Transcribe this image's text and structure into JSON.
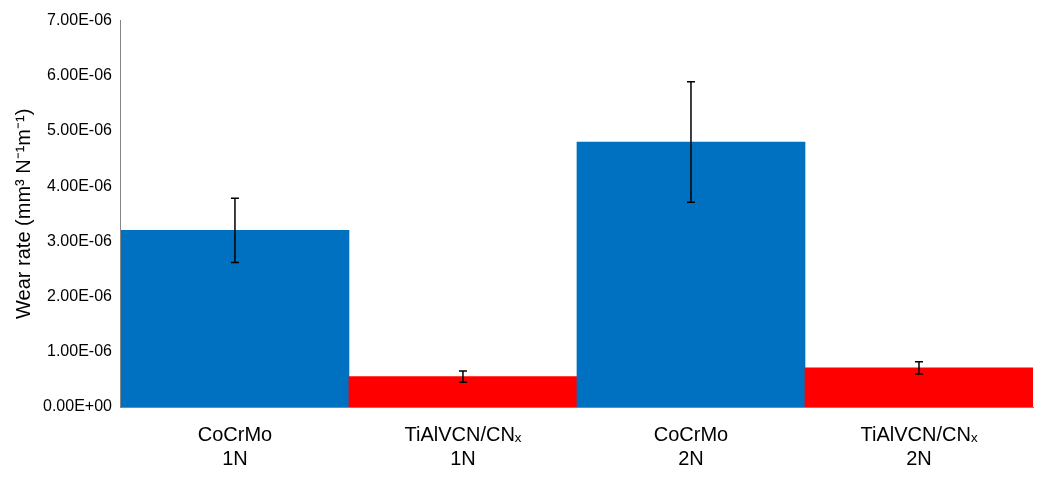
{
  "chart_data": {
    "type": "bar",
    "ylabel": "Wear rate (mm³ N⁻¹m⁻¹)",
    "categories": [
      "CoCrMo\n1N",
      "TiAlVCN/CNₓ\n1N",
      "CoCrMo\n2N",
      "TiAlVCN/CNₓ\n2N"
    ],
    "values": [
      3.2e-06,
      5.5e-07,
      4.8e-06,
      7.1e-07
    ],
    "colors": [
      "#0070c0",
      "#ff0000",
      "#0070c0",
      "#ff0000"
    ],
    "errors": [
      5.8e-07,
      1e-07,
      1.09e-06,
      1.1e-07
    ],
    "ylim": [
      0,
      7e-06
    ],
    "yticks": [
      {
        "value": 0,
        "label": "0.00E+00"
      },
      {
        "value": 1e-06,
        "label": "1.00E-06"
      },
      {
        "value": 2e-06,
        "label": "2.00E-06"
      },
      {
        "value": 3e-06,
        "label": "3.00E-06"
      },
      {
        "value": 4e-06,
        "label": "4.00E-06"
      },
      {
        "value": 5e-06,
        "label": "5.00E-06"
      },
      {
        "value": 6e-06,
        "label": "6.00E-06"
      },
      {
        "value": 7e-06,
        "label": "7.00E-06"
      }
    ],
    "grid": false,
    "legend": false
  }
}
